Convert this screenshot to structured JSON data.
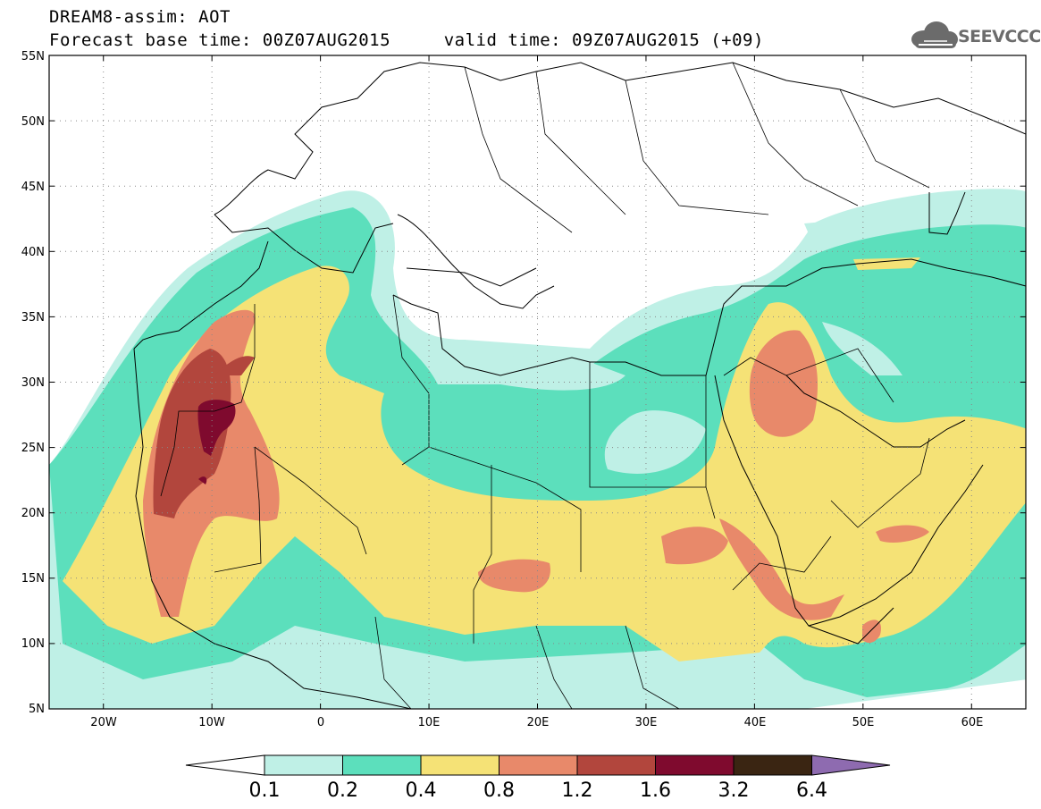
{
  "header": {
    "line1": "DREAM8-assim: AOT",
    "line2": "Forecast base time: 00Z07AUG2015     valid time: 09Z07AUG2015 (+09)",
    "logo_text": "SEEVCCC"
  },
  "map": {
    "lon_range": [
      -25,
      65
    ],
    "lat_range": [
      5,
      55
    ],
    "lat_labels": [
      "5N",
      "10N",
      "15N",
      "20N",
      "25N",
      "30N",
      "35N",
      "40N",
      "45N",
      "50N",
      "55N"
    ],
    "lon_labels": [
      "20W",
      "10W",
      "0",
      "10E",
      "20E",
      "30E",
      "40E",
      "50E",
      "60E"
    ],
    "gridlines": "dotted"
  },
  "colorbar": {
    "labels": [
      "0.1",
      "0.2",
      "0.4",
      "0.8",
      "1.2",
      "1.6",
      "3.2",
      "6.4"
    ],
    "colors": [
      "#ffffff",
      "#bff0e6",
      "#5cdfbc",
      "#f5e276",
      "#e8896a",
      "#b2463d",
      "#7f0a2e",
      "#3a2512",
      "#8e6bb0"
    ]
  },
  "levels": {
    "l1": "#bff0e6",
    "l2": "#5cdfbc",
    "l3": "#f5e276",
    "l4": "#e8896a",
    "l5": "#b2463d",
    "l6": "#7f0a2e"
  }
}
